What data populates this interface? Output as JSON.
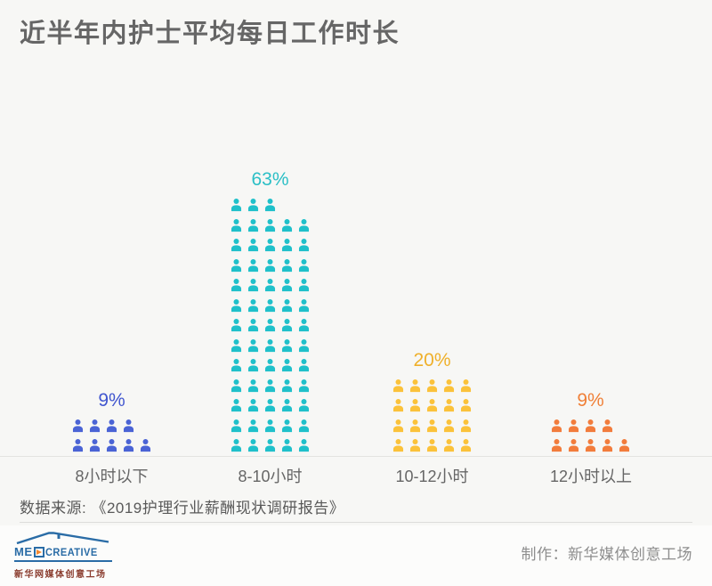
{
  "title": "近半年内护士平均每日工作时长",
  "chart_data": {
    "type": "pictogram",
    "title": "近半年内护士平均每日工作时长",
    "categories": [
      "8小时以下",
      "8-10小时",
      "10-12小时",
      "12小时以上"
    ],
    "values": [
      9,
      63,
      20,
      9
    ],
    "value_labels": [
      "9%",
      "63%",
      "20%",
      "9%"
    ],
    "icon": "person-icon",
    "icon_equals": "1 icon = 1%",
    "icons_per_row": 5,
    "colors": [
      "#4a63d5",
      "#1fc0ca",
      "#fbc23a",
      "#f27c3c"
    ],
    "label_colors": [
      "#4156cf",
      "#2bbfc6",
      "#efb02a",
      "#f08038"
    ],
    "legend": null,
    "grid": false
  },
  "source": {
    "label": "数据来源: 《2019护理行业薪酬现状调研报告》"
  },
  "footer": {
    "credit": "制作：新华媒体创意工场",
    "logo": {
      "brand_prefix": "ME",
      "brand_suffix": "CREATIVE",
      "subtitle": "新华网媒体创意工场",
      "brand_color": "#2a6ca6",
      "accent_color": "#f5872e"
    }
  }
}
